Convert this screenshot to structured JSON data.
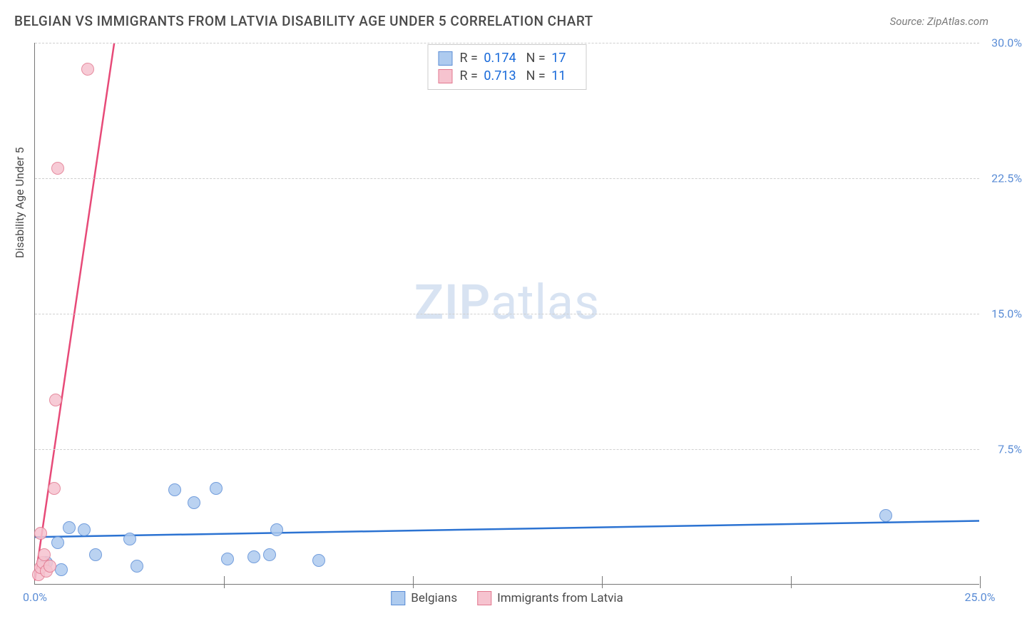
{
  "header": {
    "title": "BELGIAN VS IMMIGRANTS FROM LATVIA DISABILITY AGE UNDER 5 CORRELATION CHART",
    "source": "Source: ZipAtlas.com"
  },
  "watermark": {
    "zip": "ZIP",
    "atlas": "atlas"
  },
  "chart": {
    "type": "scatter",
    "xlabel": "",
    "ylabel": "Disability Age Under 5",
    "xlim": [
      0,
      25
    ],
    "ylim": [
      0,
      30
    ],
    "x_ticks": [
      0,
      5,
      10,
      15,
      20,
      25
    ],
    "x_tick_labels": [
      "0.0%",
      "",
      "",
      "",
      "",
      "25.0%"
    ],
    "y_ticks": [
      7.5,
      15.0,
      22.5,
      30.0
    ],
    "y_tick_labels": [
      "7.5%",
      "15.0%",
      "22.5%",
      "30.0%"
    ],
    "marker_radius": 9,
    "background_color": "#ffffff",
    "grid_color": "#d0d0d0",
    "axis_color": "#777777",
    "tick_label_color": "#5b8dd6"
  },
  "series": [
    {
      "name": "Belgians",
      "fill": "#aecbef",
      "stroke": "#5b8dd6",
      "trend_color": "#2c73d2",
      "trend": {
        "x1": 0,
        "y1": 2.6,
        "x2": 25,
        "y2": 3.5
      },
      "R": "0.174",
      "N": "17",
      "points": [
        {
          "x": 0.3,
          "y": 1.2
        },
        {
          "x": 0.6,
          "y": 2.3
        },
        {
          "x": 0.7,
          "y": 0.8
        },
        {
          "x": 0.9,
          "y": 3.1
        },
        {
          "x": 1.3,
          "y": 3.0
        },
        {
          "x": 1.6,
          "y": 1.6
        },
        {
          "x": 2.5,
          "y": 2.5
        },
        {
          "x": 2.7,
          "y": 1.0
        },
        {
          "x": 3.7,
          "y": 5.2
        },
        {
          "x": 4.2,
          "y": 4.5
        },
        {
          "x": 4.8,
          "y": 5.3
        },
        {
          "x": 5.1,
          "y": 1.4
        },
        {
          "x": 5.8,
          "y": 1.5
        },
        {
          "x": 6.2,
          "y": 1.6
        },
        {
          "x": 6.4,
          "y": 3.0
        },
        {
          "x": 7.5,
          "y": 1.3
        },
        {
          "x": 22.5,
          "y": 3.8
        }
      ]
    },
    {
      "name": "Immigrants from Latvia",
      "fill": "#f6c3cf",
      "stroke": "#e2788f",
      "trend_color": "#e74a78",
      "trend": {
        "x1": 0,
        "y1": 0.2,
        "x2": 2.1,
        "y2": 30
      },
      "R": "0.713",
      "N": "11",
      "points": [
        {
          "x": 0.1,
          "y": 0.5
        },
        {
          "x": 0.15,
          "y": 0.9
        },
        {
          "x": 0.2,
          "y": 1.2
        },
        {
          "x": 0.25,
          "y": 1.6
        },
        {
          "x": 0.3,
          "y": 0.7
        },
        {
          "x": 0.15,
          "y": 2.8
        },
        {
          "x": 0.4,
          "y": 1.0
        },
        {
          "x": 0.5,
          "y": 5.3
        },
        {
          "x": 0.55,
          "y": 10.2
        },
        {
          "x": 0.6,
          "y": 23.0
        },
        {
          "x": 1.4,
          "y": 28.5
        }
      ]
    }
  ],
  "legend_bottom": {
    "items": [
      "Belgians",
      "Immigrants from Latvia"
    ]
  },
  "r_legend": {
    "r_label": "R =",
    "n_label": "N ="
  }
}
